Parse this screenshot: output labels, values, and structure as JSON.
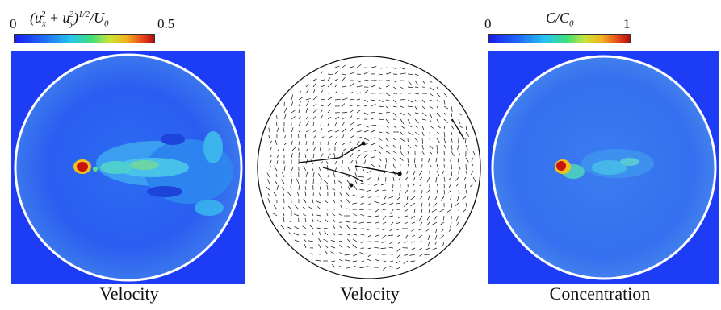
{
  "panels": [
    {
      "caption": "Velocity",
      "colorbar": {
        "min": "0",
        "max": "0.5",
        "label": "(u²ₓ + u²ᵧ)¹ᐟ² / U₀",
        "label_html": "(u_x^2 + u_y^2)^{1/2} / U_0"
      }
    },
    {
      "caption": "Velocity"
    },
    {
      "caption": "Concentration",
      "colorbar": {
        "min": "0",
        "max": "1",
        "label": "C / C₀"
      }
    }
  ],
  "colors": {
    "field_blue": "#1d3df5",
    "field_mid": "#2e6cf0",
    "hot_red": "#c8140e",
    "jet_green": "#3ee07a",
    "circle_rim": "#ffffff",
    "vector_ink": "#111111"
  },
  "colormap": "jet"
}
